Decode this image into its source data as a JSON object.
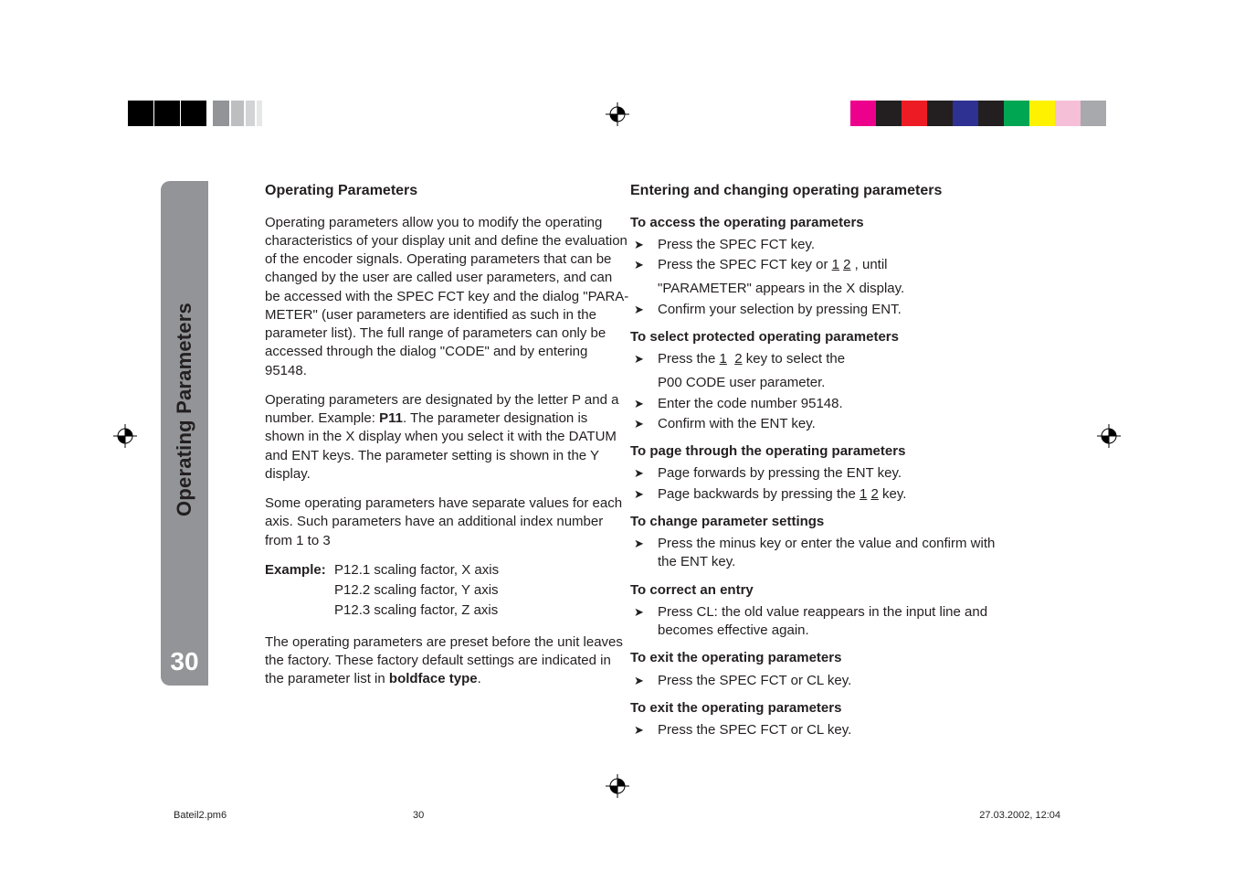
{
  "topbar": {
    "right_colors": [
      "#ec008c",
      "#231f20",
      "#ed1c24",
      "#231f20",
      "#2e3192",
      "#231f20",
      "#00a651",
      "#fff200",
      "#f5c0d7",
      "#a7a9ac"
    ]
  },
  "sidebar": {
    "label": "Operating Parameters",
    "page": "30"
  },
  "left": {
    "heading": "Operating Parameters",
    "p1": "Operating parameters allow you to modify the operating characteristics of your display unit and define the evaluation of the encoder signals. Operating parameters that can be changed by the user are called user parameters, and can be accessed with the SPEC FCT key and the dialog \"PARA-METER\" (user parameters are identified as such in the parameter list). The full range of parameters can only be accessed through the dialog \"CODE\" and by entering 95148.",
    "p2a": "Operating parameters are designated by the letter P and a number. Example: ",
    "p2b": "P11",
    "p2c": ". The parameter designation is shown in the X display when you select it with the DATUM and ENT keys. The parameter setting is shown in the Y display.",
    "p3": "Some operating parameters have separate values for each axis. Such parameters have an additional index number from 1 to 3",
    "ex_label": "Example:",
    "ex1": "P12.1 scaling factor, X axis",
    "ex2": "P12.2 scaling factor, Y axis",
    "ex3": "P12.3 scaling factor, Z axis",
    "p4a": "The operating parameters are preset before the unit leaves the factory. These factory default settings are indicated in the parameter list in ",
    "p4b": "boldface type",
    "p4c": "."
  },
  "right": {
    "heading": "Entering and changing operating parameters",
    "s1": "To access the operating parameters",
    "s1_i1": "Press the SPEC FCT key.",
    "s1_i2a": "Press the SPEC FCT key or ",
    "s1_i2b": "1",
    "s1_i2c": "2",
    "s1_i2d": " , until",
    "s1_i2e": "\"PARAMETER\" appears in the X display.",
    "s1_i3": "Confirm your selection by pressing ENT.",
    "s2": "To select protected operating parameters",
    "s2_i1a": "Press the ",
    "s2_i1b": "1",
    "s2_i1c": "2",
    "s2_i1d": " key to select the",
    "s2_i1e": "P00 CODE user parameter.",
    "s2_i2": "Enter the code number 95148.",
    "s2_i3": "Confirm with the ENT key.",
    "s3": "To page through the operating parameters",
    "s3_i1": "Page forwards by pressing the ENT key.",
    "s3_i2a": "Page backwards by pressing the ",
    "s3_i2b": "1",
    "s3_i2c": "2",
    "s3_i2d": "  key.",
    "s4": "To change parameter settings",
    "s4_i1": "Press the minus key or enter the value and confirm with the ENT key.",
    "s5": "To correct an entry",
    "s5_i1": "Press CL: the old value reappears in the input line and becomes effective again.",
    "s6": "To exit the operating parameters",
    "s6_i1": "Press the SPEC FCT or CL key.",
    "s7": "To exit the operating parameters",
    "s7_i1": "Press the SPEC FCT or CL key."
  },
  "footer": {
    "file": "Bateil2.pm6",
    "page": "30",
    "date": "27.03.2002, 12:04"
  }
}
